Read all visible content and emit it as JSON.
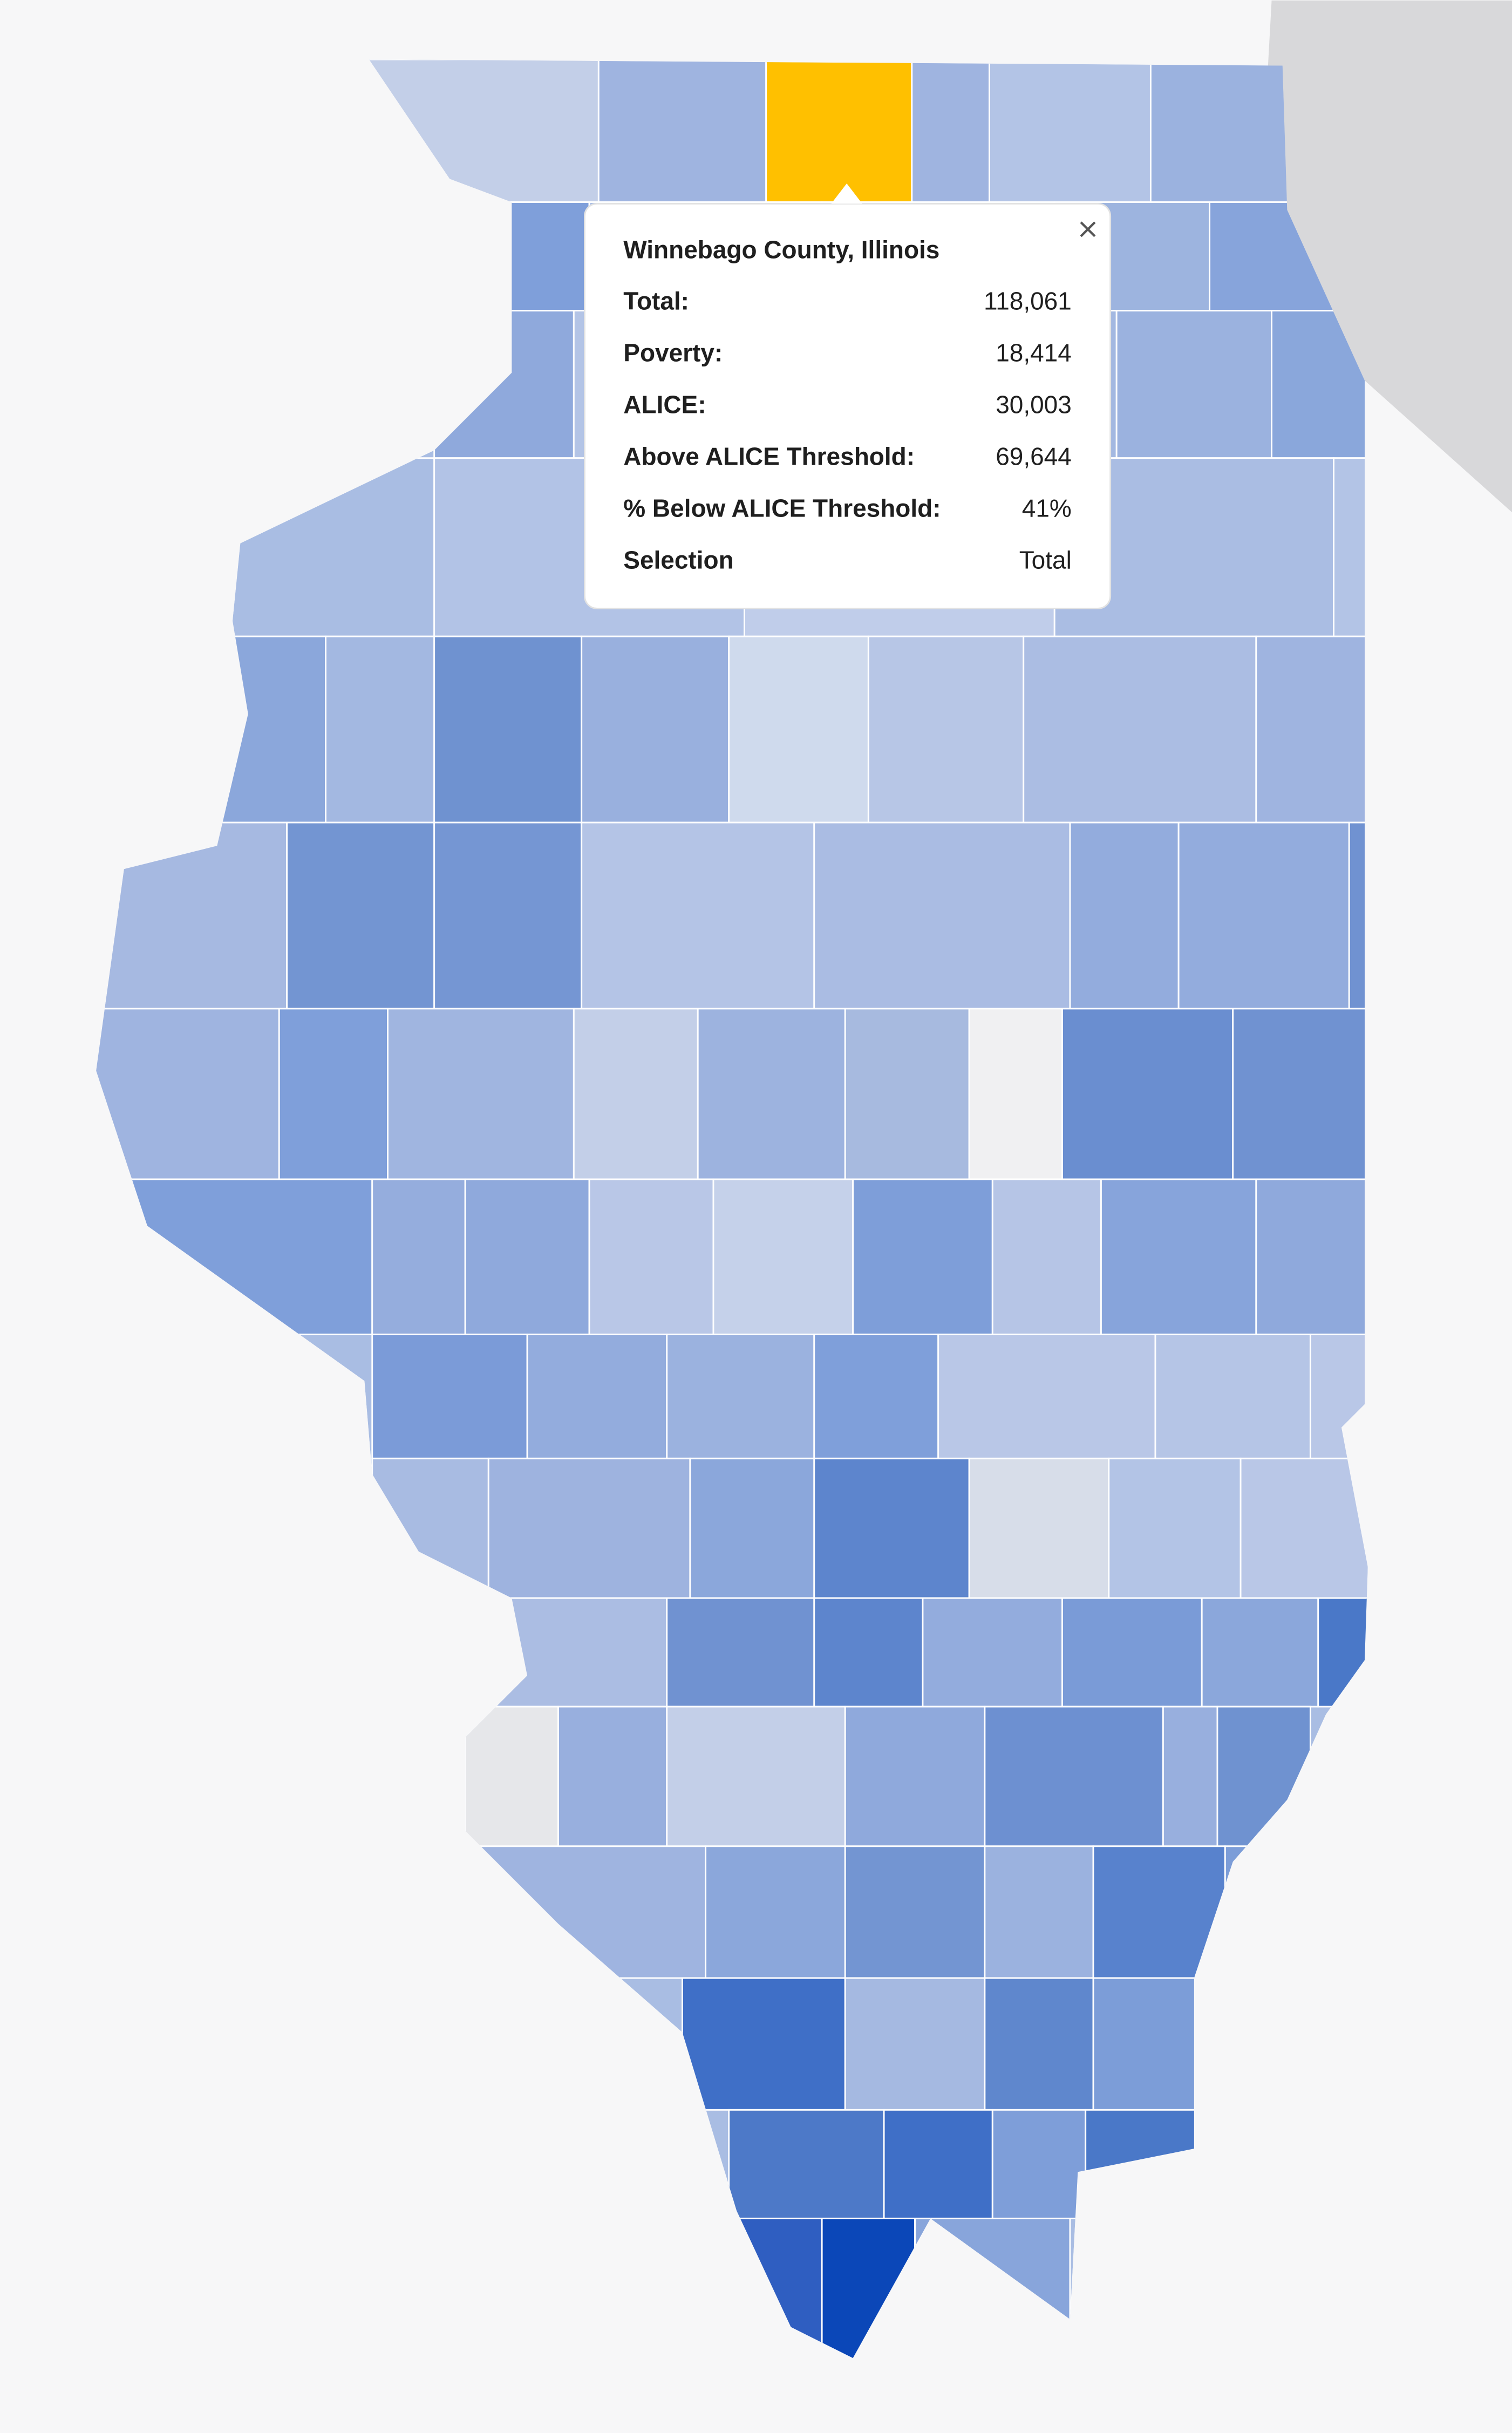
{
  "tooltip": {
    "title": "Winnebago County, Illinois",
    "rows": [
      [
        "Total:",
        "118,061"
      ],
      [
        "Poverty:",
        "18,414"
      ],
      [
        "ALICE:",
        "30,003"
      ],
      [
        "Above ALICE Threshold:",
        "69,644"
      ],
      [
        "% Below ALICE Threshold:",
        "41%"
      ],
      [
        "Selection",
        "Total"
      ]
    ]
  }
}
